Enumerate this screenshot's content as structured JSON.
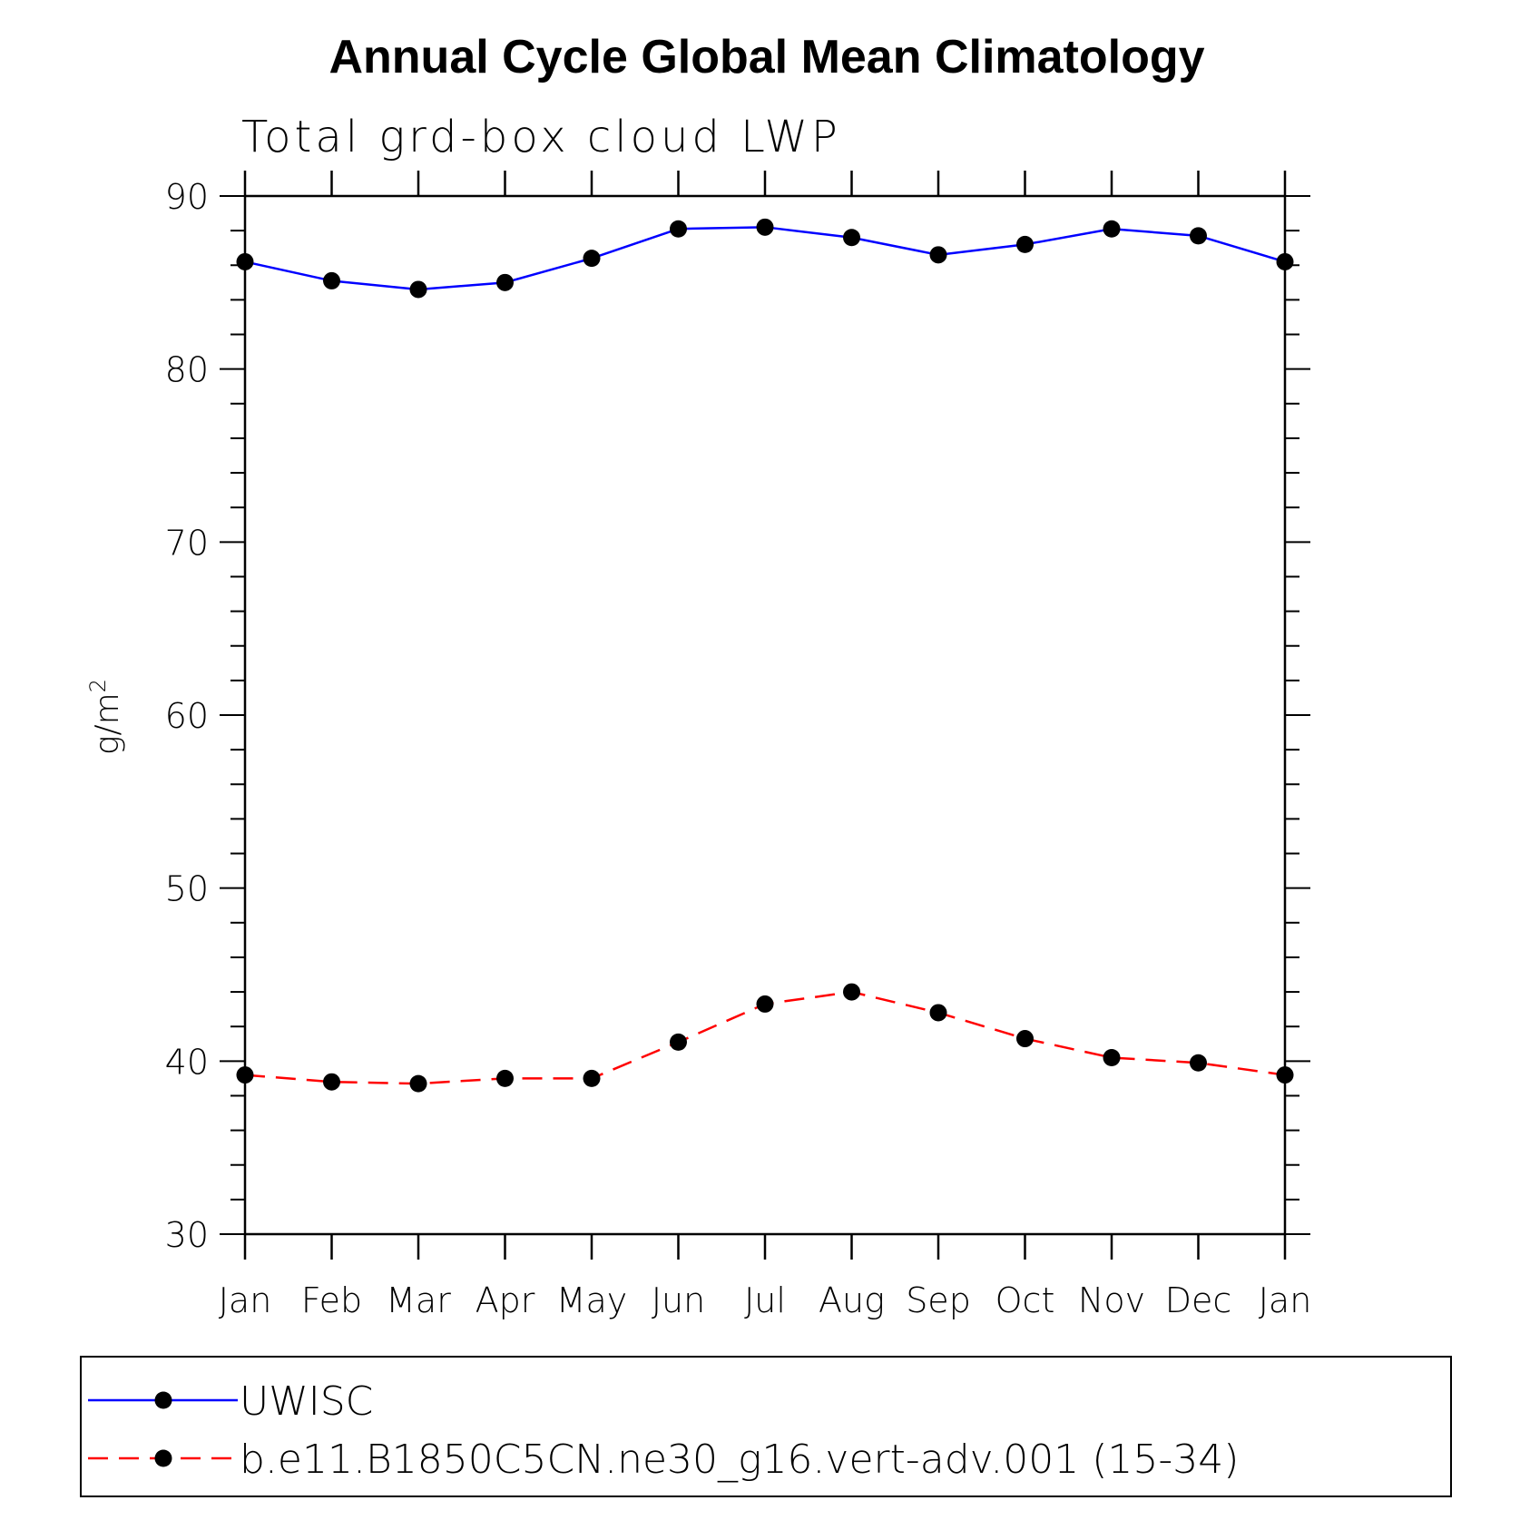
{
  "chart_data": {
    "type": "line",
    "title": "Annual Cycle Global Mean Climatology",
    "subtitle": "Total grd-box cloud LWP",
    "xlabel": "",
    "ylabel_base": "g/m",
    "ylabel_sup": "2",
    "categories": [
      "Jan",
      "Feb",
      "Mar",
      "Apr",
      "May",
      "Jun",
      "Jul",
      "Aug",
      "Sep",
      "Oct",
      "Nov",
      "Dec",
      "Jan"
    ],
    "ylim": [
      30,
      90
    ],
    "yticks": [
      30,
      40,
      50,
      60,
      70,
      80,
      90
    ],
    "series": [
      {
        "name": "UWISC",
        "color": "#0000ff",
        "dash": "solid",
        "values": [
          86.2,
          85.1,
          84.6,
          85.0,
          86.4,
          88.1,
          88.2,
          87.6,
          86.6,
          87.2,
          88.1,
          87.7,
          86.2
        ]
      },
      {
        "name": "b.e11.B1850C5CN.ne30_g16.vert-adv.001 (15-34)",
        "color": "#ff0000",
        "dash": "dashed",
        "values": [
          39.2,
          38.8,
          38.7,
          39.0,
          39.0,
          41.1,
          43.3,
          44.0,
          42.8,
          41.3,
          40.2,
          39.9,
          39.2
        ]
      }
    ],
    "legend_position": "bottom"
  }
}
